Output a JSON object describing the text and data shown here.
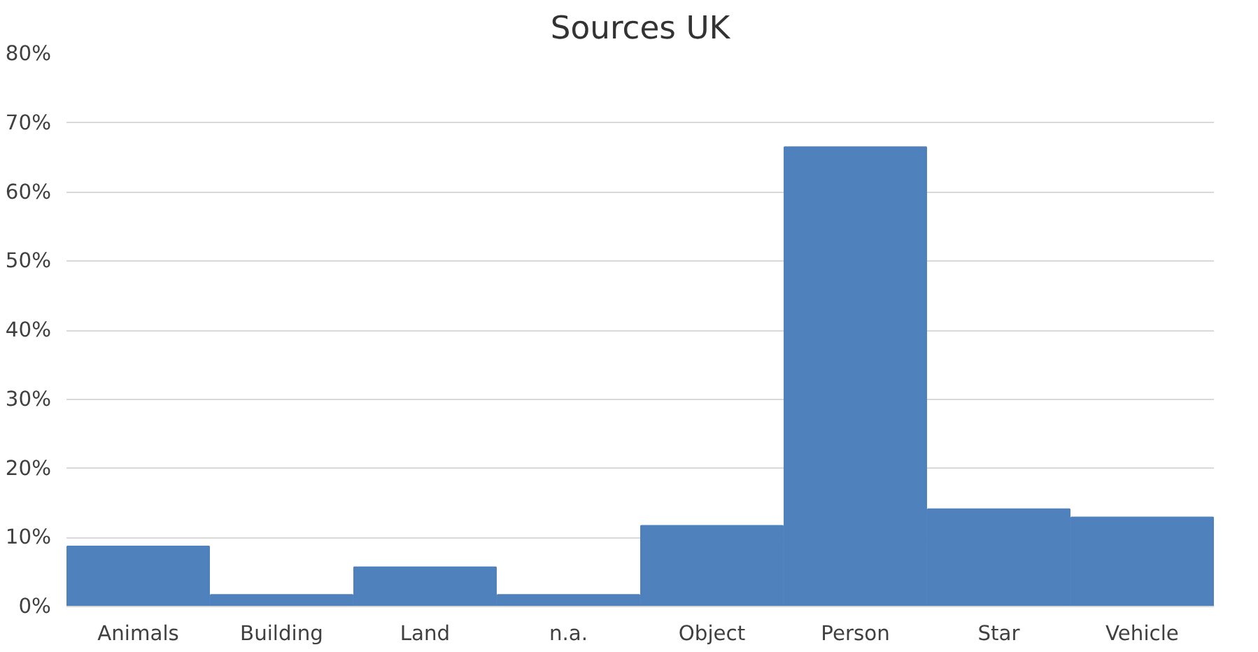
{
  "chart_data": {
    "type": "bar",
    "title": "Sources UK",
    "categories": [
      "Animals",
      "Building",
      "Land",
      "n.a.",
      "Object",
      "Person",
      "Star",
      "Vehicle"
    ],
    "values": [
      8.7,
      1.7,
      5.7,
      1.7,
      11.7,
      66.5,
      14.1,
      12.9
    ],
    "color": "#4f81bd",
    "ylim": [
      0,
      80
    ],
    "yticks": [
      {
        "value": 0,
        "label": "0%"
      },
      {
        "value": 10,
        "label": "10%"
      },
      {
        "value": 20,
        "label": "20%"
      },
      {
        "value": 30,
        "label": "30%"
      },
      {
        "value": 40,
        "label": "40%"
      },
      {
        "value": 50,
        "label": "50%"
      },
      {
        "value": 60,
        "label": "60%"
      },
      {
        "value": 70,
        "label": "70%"
      },
      {
        "value": 80,
        "label": "80%"
      }
    ],
    "grid": "y"
  }
}
